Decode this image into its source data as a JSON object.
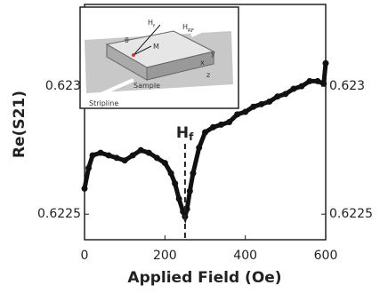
{
  "chart_data": {
    "type": "line",
    "x_label": "Applied Field (Oe)",
    "y_label": "Re(S21)",
    "x": [
      0,
      10,
      20,
      40,
      60,
      80,
      100,
      120,
      140,
      160,
      180,
      200,
      215,
      225,
      235,
      245,
      250,
      255,
      262,
      270,
      285,
      300,
      320,
      340,
      360,
      380,
      400,
      420,
      440,
      460,
      480,
      500,
      520,
      540,
      560,
      580,
      595,
      600
    ],
    "series": [
      {
        "color": "#111111",
        "values": [
          0.6226,
          0.62268,
          0.62273,
          0.62274,
          0.62273,
          0.62272,
          0.62271,
          0.62273,
          0.62275,
          0.62274,
          0.62272,
          0.6227,
          0.62266,
          0.62262,
          0.62256,
          0.62251,
          0.62249,
          0.62252,
          0.62259,
          0.62266,
          0.62276,
          0.62282,
          0.62284,
          0.62285,
          0.62286,
          0.62289,
          0.6229,
          0.62292,
          0.62293,
          0.62294,
          0.62296,
          0.62297,
          0.62299,
          0.623,
          0.62302,
          0.62302,
          0.62301,
          0.62309
        ]
      }
    ],
    "xlim": [
      0,
      600
    ],
    "xticks": [
      0,
      200,
      400,
      600
    ],
    "ylim": [
      0.6224,
      0.62332
    ],
    "yticks": [
      0.6225,
      0.623
    ],
    "annotation": {
      "text": "H",
      "subscript": "f",
      "x": 250
    },
    "inset_labels": [
      {
        "text": "H",
        "subscript": "f"
      },
      {
        "text": "H",
        "subscript": "RF"
      },
      {
        "text": "M"
      },
      {
        "text": "θ"
      },
      {
        "text": "Sample"
      },
      {
        "text": "Stripline"
      },
      {
        "text": "x"
      },
      {
        "text": "y"
      },
      {
        "text": "z"
      }
    ]
  }
}
